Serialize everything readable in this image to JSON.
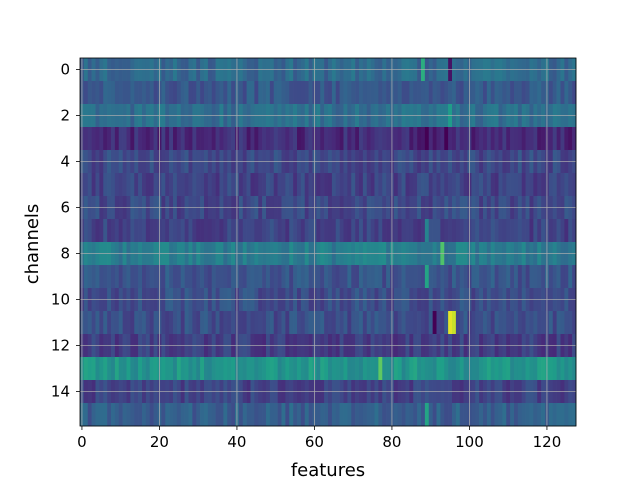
{
  "chart_data": {
    "type": "heatmap",
    "title": "",
    "xlabel": "features",
    "ylabel": "channels",
    "n_rows": 16,
    "n_cols": 128,
    "xlim": [
      -0.5,
      127.5
    ],
    "ylim": [
      15.5,
      -0.5
    ],
    "x_ticks": [
      0,
      20,
      40,
      60,
      80,
      100,
      120
    ],
    "y_ticks": [
      0,
      2,
      4,
      6,
      8,
      10,
      12,
      14
    ],
    "grid": true,
    "colormap": "viridis",
    "row_base": [
      0.34,
      0.28,
      0.36,
      0.12,
      0.22,
      0.2,
      0.22,
      0.2,
      0.42,
      0.26,
      0.24,
      0.24,
      0.18,
      0.52,
      0.2,
      0.3
    ],
    "hotspots": [
      {
        "row": 0,
        "col": 88,
        "value": 0.62
      },
      {
        "row": 0,
        "col": 95,
        "value": 0.05
      },
      {
        "row": 2,
        "col": 95,
        "value": 0.55
      },
      {
        "row": 3,
        "col": 89,
        "value": 0.0
      },
      {
        "row": 3,
        "col": 94,
        "value": 0.0
      },
      {
        "row": 7,
        "col": 89,
        "value": 0.45
      },
      {
        "row": 8,
        "col": 93,
        "value": 0.72
      },
      {
        "row": 9,
        "col": 89,
        "value": 0.58
      },
      {
        "row": 11,
        "col": 91,
        "value": 0.0
      },
      {
        "row": 11,
        "col": 95,
        "value": 0.96
      },
      {
        "row": 11,
        "col": 96,
        "value": 0.92
      },
      {
        "row": 13,
        "col": 77,
        "value": 0.75
      },
      {
        "row": 15,
        "col": 89,
        "value": 0.58
      }
    ]
  }
}
